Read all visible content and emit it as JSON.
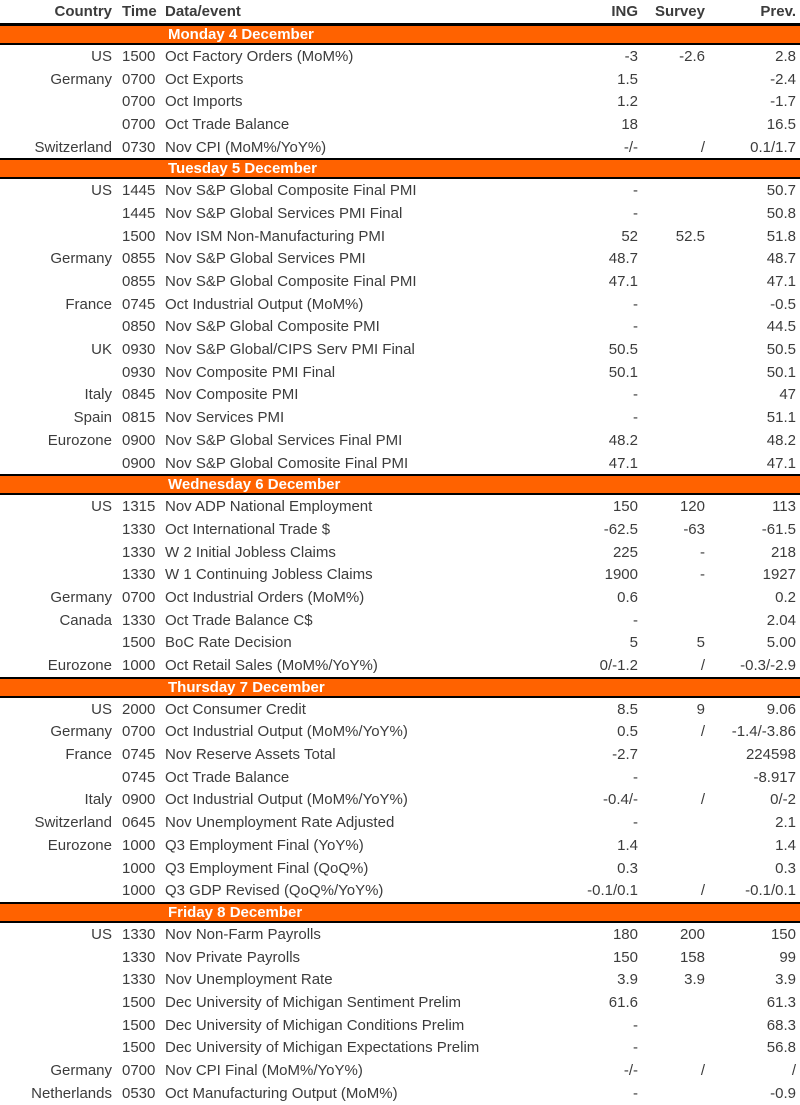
{
  "table": {
    "accent_color": "#FF6200",
    "text_color": "#3c3c3c",
    "headers": {
      "country": "Country",
      "time": "Time",
      "event": "Data/event",
      "ing": "ING",
      "survey": "Survey",
      "prev": "Prev."
    },
    "sections": [
      {
        "title": "Monday 4 December",
        "rows": [
          {
            "country": "US",
            "time": "1500",
            "event": "Oct Factory Orders (MoM%)",
            "ing": "-3",
            "survey": "-2.6",
            "prev": "2.8"
          },
          {
            "country": "Germany",
            "time": "0700",
            "event": "Oct Exports",
            "ing": "1.5",
            "survey": "",
            "prev": "-2.4"
          },
          {
            "country": "",
            "time": "0700",
            "event": "Oct Imports",
            "ing": "1.2",
            "survey": "",
            "prev": "-1.7"
          },
          {
            "country": "",
            "time": "0700",
            "event": "Oct Trade Balance",
            "ing": "18",
            "survey": "",
            "prev": "16.5"
          },
          {
            "country": "Switzerland",
            "time": "0730",
            "event": "Nov CPI (MoM%/YoY%)",
            "ing": "-/-",
            "survey": "/",
            "prev": "0.1/1.7"
          }
        ]
      },
      {
        "title": "Tuesday 5 December",
        "rows": [
          {
            "country": "US",
            "time": "1445",
            "event": "Nov S&P Global Composite Final PMI",
            "ing": "-",
            "survey": "",
            "prev": "50.7"
          },
          {
            "country": "",
            "time": "1445",
            "event": "Nov S&P Global Services PMI Final",
            "ing": "-",
            "survey": "",
            "prev": "50.8"
          },
          {
            "country": "",
            "time": "1500",
            "event": "Nov ISM Non-Manufacturing PMI",
            "ing": "52",
            "survey": "52.5",
            "prev": "51.8"
          },
          {
            "country": "Germany",
            "time": "0855",
            "event": "Nov S&P Global Services PMI",
            "ing": "48.7",
            "survey": "",
            "prev": "48.7"
          },
          {
            "country": "",
            "time": "0855",
            "event": "Nov S&P Global Composite Final PMI",
            "ing": "47.1",
            "survey": "",
            "prev": "47.1"
          },
          {
            "country": "France",
            "time": "0745",
            "event": "Oct Industrial Output (MoM%)",
            "ing": "-",
            "survey": "",
            "prev": "-0.5"
          },
          {
            "country": "",
            "time": "0850",
            "event": "Nov S&P Global Composite PMI",
            "ing": "-",
            "survey": "",
            "prev": "44.5"
          },
          {
            "country": "UK",
            "time": "0930",
            "event": "Nov S&P Global/CIPS Serv PMI Final",
            "ing": "50.5",
            "survey": "",
            "prev": "50.5"
          },
          {
            "country": "",
            "time": "0930",
            "event": "Nov Composite PMI Final",
            "ing": "50.1",
            "survey": "",
            "prev": "50.1"
          },
          {
            "country": "Italy",
            "time": "0845",
            "event": "Nov Composite PMI",
            "ing": "-",
            "survey": "",
            "prev": "47"
          },
          {
            "country": "Spain",
            "time": "0815",
            "event": "Nov Services PMI",
            "ing": "-",
            "survey": "",
            "prev": "51.1"
          },
          {
            "country": "Eurozone",
            "time": "0900",
            "event": "Nov S&P Global Services Final PMI",
            "ing": "48.2",
            "survey": "",
            "prev": "48.2"
          },
          {
            "country": "",
            "time": "0900",
            "event": "Nov S&P Global Comosite Final PMI",
            "ing": "47.1",
            "survey": "",
            "prev": "47.1"
          }
        ]
      },
      {
        "title": "Wednesday 6 December",
        "rows": [
          {
            "country": "US",
            "time": "1315",
            "event": "Nov ADP National Employment",
            "ing": "150",
            "survey": "120",
            "prev": "113"
          },
          {
            "country": "",
            "time": "1330",
            "event": "Oct International Trade $",
            "ing": "-62.5",
            "survey": "-63",
            "prev": "-61.5"
          },
          {
            "country": "",
            "time": "1330",
            "event": "W 2 Initial Jobless Claims",
            "ing": "225",
            "survey": "-",
            "prev": "218"
          },
          {
            "country": "",
            "time": "1330",
            "event": "W 1 Continuing Jobless Claims",
            "ing": "1900",
            "survey": "-",
            "prev": "1927"
          },
          {
            "country": "Germany",
            "time": "0700",
            "event": "Oct Industrial Orders (MoM%)",
            "ing": "0.6",
            "survey": "",
            "prev": "0.2"
          },
          {
            "country": "Canada",
            "time": "1330",
            "event": "Oct Trade Balance C$",
            "ing": "-",
            "survey": "",
            "prev": "2.04"
          },
          {
            "country": "",
            "time": "1500",
            "event": "BoC Rate Decision",
            "ing": "5",
            "survey": "5",
            "prev": "5.00"
          },
          {
            "country": "Eurozone",
            "time": "1000",
            "event": "Oct Retail Sales (MoM%/YoY%)",
            "ing": "0/-1.2",
            "survey": "/",
            "prev": "-0.3/-2.9"
          }
        ]
      },
      {
        "title": "Thursday 7 December",
        "rows": [
          {
            "country": "US",
            "time": "2000",
            "event": "Oct Consumer Credit",
            "ing": "8.5",
            "survey": "9",
            "prev": "9.06"
          },
          {
            "country": "Germany",
            "time": "0700",
            "event": "Oct Industrial Output (MoM%/YoY%)",
            "ing": "0.5",
            "survey": "/",
            "prev": "-1.4/-3.86"
          },
          {
            "country": "France",
            "time": "0745",
            "event": "Nov Reserve Assets Total",
            "ing": "-2.7",
            "survey": "",
            "prev": "224598"
          },
          {
            "country": "",
            "time": "0745",
            "event": "Oct Trade Balance",
            "ing": "-",
            "survey": "",
            "prev": "-8.917"
          },
          {
            "country": "Italy",
            "time": "0900",
            "event": "Oct Industrial Output (MoM%/YoY%)",
            "ing": "-0.4/-",
            "survey": "/",
            "prev": "0/-2"
          },
          {
            "country": "Switzerland",
            "time": "0645",
            "event": "Nov Unemployment Rate Adjusted",
            "ing": "-",
            "survey": "",
            "prev": "2.1"
          },
          {
            "country": "Eurozone",
            "time": "1000",
            "event": "Q3 Employment Final (YoY%)",
            "ing": "1.4",
            "survey": "",
            "prev": "1.4"
          },
          {
            "country": "",
            "time": "1000",
            "event": "Q3 Employment Final (QoQ%)",
            "ing": "0.3",
            "survey": "",
            "prev": "0.3"
          },
          {
            "country": "",
            "time": "1000",
            "event": "Q3 GDP Revised (QoQ%/YoY%)",
            "ing": "-0.1/0.1",
            "survey": "/",
            "prev": "-0.1/0.1"
          }
        ]
      },
      {
        "title": "Friday 8 December",
        "rows": [
          {
            "country": "US",
            "time": "1330",
            "event": "Nov Non-Farm Payrolls",
            "ing": "180",
            "survey": "200",
            "prev": "150"
          },
          {
            "country": "",
            "time": "1330",
            "event": "Nov Private Payrolls",
            "ing": "150",
            "survey": "158",
            "prev": "99"
          },
          {
            "country": "",
            "time": "1330",
            "event": "Nov Unemployment Rate",
            "ing": "3.9",
            "survey": "3.9",
            "prev": "3.9"
          },
          {
            "country": "",
            "time": "1500",
            "event": "Dec University of Michigan Sentiment Prelim",
            "ing": "61.6",
            "survey": "",
            "prev": "61.3"
          },
          {
            "country": "",
            "time": "1500",
            "event": "Dec University of Michigan Conditions Prelim",
            "ing": "-",
            "survey": "",
            "prev": "68.3"
          },
          {
            "country": "",
            "time": "1500",
            "event": "Dec University of Michigan Expectations Prelim",
            "ing": "-",
            "survey": "",
            "prev": "56.8"
          },
          {
            "country": "Germany",
            "time": "0700",
            "event": "Nov CPI Final (MoM%/YoY%)",
            "ing": "-/-",
            "survey": "/",
            "prev": "/"
          },
          {
            "country": "Netherlands",
            "time": "0530",
            "event": "Oct Manufacturing Output (MoM%)",
            "ing": "-",
            "survey": "",
            "prev": "-0.9"
          }
        ]
      }
    ]
  }
}
